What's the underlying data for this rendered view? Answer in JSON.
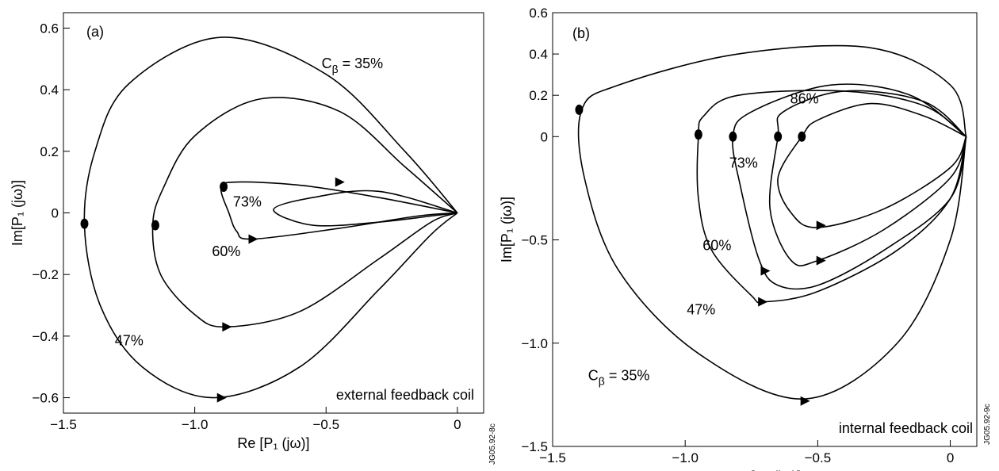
{
  "chart_data": [
    {
      "type": "line",
      "panel_label": "(a)",
      "xlabel": "Re [P₁ (jω)]",
      "ylabel": "Im[P₁ (jω)]",
      "xlim": [
        -1.5,
        0.1
      ],
      "ylim": [
        -0.65,
        0.65
      ],
      "xticks": [
        {
          "v": -1.5,
          "t": "−1.5"
        },
        {
          "v": -1.0,
          "t": "−1.0"
        },
        {
          "v": -0.5,
          "t": "−0.5"
        },
        {
          "v": 0,
          "t": "0"
        }
      ],
      "yticks": [
        {
          "v": 0.6,
          "t": "0.6"
        },
        {
          "v": 0.4,
          "t": "0.4"
        },
        {
          "v": 0.2,
          "t": "0.2"
        },
        {
          "v": 0,
          "t": "0"
        },
        {
          "v": -0.2,
          "t": "−0.2"
        },
        {
          "v": -0.4,
          "t": "−0.4"
        },
        {
          "v": -0.6,
          "t": "−0.6"
        }
      ],
      "grid": false,
      "footer_note": "external feedback coil",
      "figure_id": "JG05.92-8c",
      "series": [
        {
          "name": "Cβ = 35%",
          "points": [
            [
              0,
              0
            ],
            [
              -0.2,
              0.2
            ],
            [
              -0.5,
              0.45
            ],
            [
              -0.9,
              0.57
            ],
            [
              -1.25,
              0.42
            ],
            [
              -1.38,
              0.2
            ],
            [
              -1.42,
              -0.04
            ],
            [
              -1.36,
              -0.3
            ],
            [
              -1.2,
              -0.5
            ],
            [
              -0.93,
              -0.6
            ],
            [
              -0.6,
              -0.5
            ],
            [
              -0.3,
              -0.25
            ],
            [
              -0.1,
              -0.07
            ],
            [
              0,
              0
            ]
          ],
          "markers": [
            [
              -1.42,
              -0.035
            ]
          ],
          "arrows": [
            [
              -0.9,
              -0.6
            ]
          ]
        },
        {
          "name": "47%",
          "points": [
            [
              0,
              0
            ],
            [
              -0.2,
              0.15
            ],
            [
              -0.45,
              0.33
            ],
            [
              -0.75,
              0.37
            ],
            [
              -1.0,
              0.25
            ],
            [
              -1.12,
              0.08
            ],
            [
              -1.16,
              -0.04
            ],
            [
              -1.13,
              -0.2
            ],
            [
              -1.0,
              -0.33
            ],
            [
              -0.88,
              -0.37
            ],
            [
              -0.6,
              -0.32
            ],
            [
              -0.3,
              -0.15
            ],
            [
              -0.1,
              -0.03
            ],
            [
              0,
              0
            ]
          ],
          "markers": [
            [
              -1.15,
              -0.04
            ]
          ],
          "arrows": [
            [
              -0.88,
              -0.37
            ]
          ]
        },
        {
          "name": "60%",
          "points": [
            [
              0,
              0
            ],
            [
              -0.3,
              0.05
            ],
            [
              -0.6,
              0.09
            ],
            [
              -0.85,
              0.1
            ],
            [
              -0.9,
              0.08
            ],
            [
              -0.87,
              0.0
            ],
            [
              -0.84,
              -0.06
            ],
            [
              -0.78,
              -0.085
            ],
            [
              -0.45,
              -0.05
            ],
            [
              -0.15,
              -0.01
            ],
            [
              0,
              0
            ]
          ],
          "markers": [
            [
              -0.89,
              0.085
            ]
          ],
          "arrows": [
            [
              -0.78,
              -0.085
            ]
          ]
        },
        {
          "name": "73%",
          "points": [
            [
              0,
              0
            ],
            [
              -0.3,
              0.07
            ],
            [
              -0.55,
              0.05
            ],
            [
              -0.7,
              0.01
            ],
            [
              -0.55,
              -0.04
            ],
            [
              -0.3,
              -0.03
            ],
            [
              -0.1,
              -0.01
            ],
            [
              0,
              0
            ]
          ],
          "markers": [],
          "arrows": [
            [
              -0.45,
              0.1
            ]
          ]
        }
      ]
    },
    {
      "type": "line",
      "panel_label": "(b)",
      "xlabel": "Re [P₁ (jω)]",
      "ylabel": "Im[P₁ (jω)]",
      "xlim": [
        -1.5,
        0.1
      ],
      "ylim": [
        -1.5,
        0.6
      ],
      "xticks": [
        {
          "v": -1.5,
          "t": "−1.5"
        },
        {
          "v": -1.0,
          "t": "−1.0"
        },
        {
          "v": -0.5,
          "t": "−0.5"
        },
        {
          "v": 0,
          "t": "0"
        }
      ],
      "yticks": [
        {
          "v": 0.6,
          "t": "0.6"
        },
        {
          "v": 0.4,
          "t": "0.4"
        },
        {
          "v": 0.2,
          "t": "0.2"
        },
        {
          "v": 0,
          "t": "0"
        },
        {
          "v": -0.5,
          "t": "−0.5"
        },
        {
          "v": -1.0,
          "t": "−1.0"
        },
        {
          "v": -1.5,
          "t": "−1.5"
        }
      ],
      "grid": false,
      "footer_note": "internal feedback coil",
      "figure_id": "JG05.92-9c",
      "series": [
        {
          "name": "Cβ = 35%",
          "points": [
            [
              0.06,
              0
            ],
            [
              0.0,
              0.25
            ],
            [
              -0.3,
              0.43
            ],
            [
              -0.8,
              0.4
            ],
            [
              -1.25,
              0.25
            ],
            [
              -1.39,
              0.13
            ],
            [
              -1.38,
              -0.2
            ],
            [
              -1.25,
              -0.65
            ],
            [
              -0.95,
              -1.05
            ],
            [
              -0.55,
              -1.27
            ],
            [
              -0.2,
              -1.0
            ],
            [
              0.0,
              -0.5
            ],
            [
              0.06,
              0
            ]
          ],
          "markers": [
            [
              -1.4,
              0.13
            ]
          ],
          "arrows": [
            [
              -0.55,
              -1.28
            ]
          ]
        },
        {
          "name": "47%",
          "points": [
            [
              0.06,
              0
            ],
            [
              -0.1,
              0.15
            ],
            [
              -0.4,
              0.22
            ],
            [
              -0.8,
              0.2
            ],
            [
              -0.93,
              0.1
            ],
            [
              -0.95,
              0.0
            ],
            [
              -0.95,
              -0.3
            ],
            [
              -0.9,
              -0.55
            ],
            [
              -0.75,
              -0.77
            ],
            [
              -0.7,
              -0.8
            ],
            [
              -0.5,
              -0.75
            ],
            [
              -0.2,
              -0.55
            ],
            [
              0.0,
              -0.3
            ],
            [
              0.06,
              0
            ]
          ],
          "markers": [
            [
              -0.95,
              0.01
            ]
          ],
          "arrows": [
            [
              -0.71,
              -0.8
            ]
          ]
        },
        {
          "name": "60%",
          "points": [
            [
              0.06,
              0
            ],
            [
              -0.15,
              0.2
            ],
            [
              -0.45,
              0.25
            ],
            [
              -0.75,
              0.12
            ],
            [
              -0.82,
              0.0
            ],
            [
              -0.79,
              -0.25
            ],
            [
              -0.72,
              -0.6
            ],
            [
              -0.65,
              -0.72
            ],
            [
              -0.5,
              -0.72
            ],
            [
              -0.25,
              -0.55
            ],
            [
              0.0,
              -0.3
            ],
            [
              0.06,
              0
            ]
          ],
          "markers": [
            [
              -0.82,
              0.0
            ]
          ],
          "arrows": [
            [
              -0.7,
              -0.65
            ]
          ]
        },
        {
          "name": "73%",
          "points": [
            [
              0.06,
              0
            ],
            [
              -0.1,
              0.17
            ],
            [
              -0.4,
              0.22
            ],
            [
              -0.63,
              0.12
            ],
            [
              -0.65,
              0.0
            ],
            [
              -0.68,
              -0.35
            ],
            [
              -0.6,
              -0.6
            ],
            [
              -0.5,
              -0.6
            ],
            [
              -0.25,
              -0.45
            ],
            [
              0.0,
              -0.2
            ],
            [
              0.06,
              0
            ]
          ],
          "markers": [
            [
              -0.65,
              0.0
            ]
          ],
          "arrows": [
            [
              -0.49,
              -0.6
            ]
          ]
        },
        {
          "name": "86%",
          "points": [
            [
              0.06,
              0
            ],
            [
              -0.1,
              0.1
            ],
            [
              -0.3,
              0.16
            ],
            [
              -0.5,
              0.08
            ],
            [
              -0.56,
              0.0
            ],
            [
              -0.65,
              -0.2
            ],
            [
              -0.6,
              -0.37
            ],
            [
              -0.5,
              -0.44
            ],
            [
              -0.25,
              -0.35
            ],
            [
              0.0,
              -0.15
            ],
            [
              0.06,
              0
            ]
          ],
          "markers": [
            [
              -0.56,
              0.0
            ]
          ],
          "arrows": [
            [
              -0.49,
              -0.43
            ]
          ]
        }
      ]
    }
  ]
}
